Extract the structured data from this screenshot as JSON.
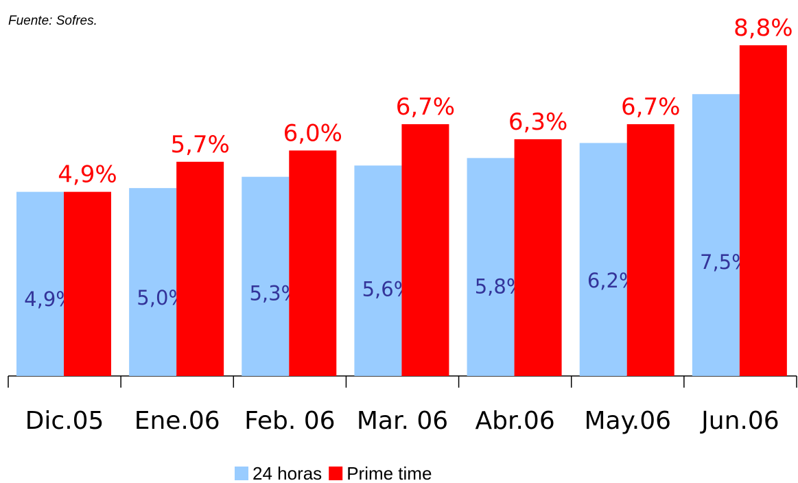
{
  "chart_data": {
    "type": "bar",
    "note": "Fuente: Sofres.",
    "categories": [
      "Dic.05",
      "Ene.06",
      "Feb. 06",
      "Mar. 06",
      "Abr.06",
      "May.06",
      "Jun.06"
    ],
    "series": [
      {
        "name": "24 horas",
        "color": "#99ccff",
        "label_color": "#333399",
        "values": [
          4.9,
          5.0,
          5.3,
          5.6,
          5.8,
          6.2,
          7.5
        ],
        "value_labels": [
          "4,9%",
          "5,0%",
          "5,3%",
          "5,6%",
          "5,8%",
          "6,2%",
          "7,5%"
        ]
      },
      {
        "name": "Prime time",
        "color": "#ff0000",
        "label_color": "#ff0000",
        "values": [
          4.9,
          5.7,
          6.0,
          6.7,
          6.3,
          6.7,
          8.8
        ],
        "value_labels": [
          "4,9%",
          "5,7%",
          "6,0%",
          "6,7%",
          "6,3%",
          "6,7%",
          "8,8%"
        ]
      }
    ]
  }
}
